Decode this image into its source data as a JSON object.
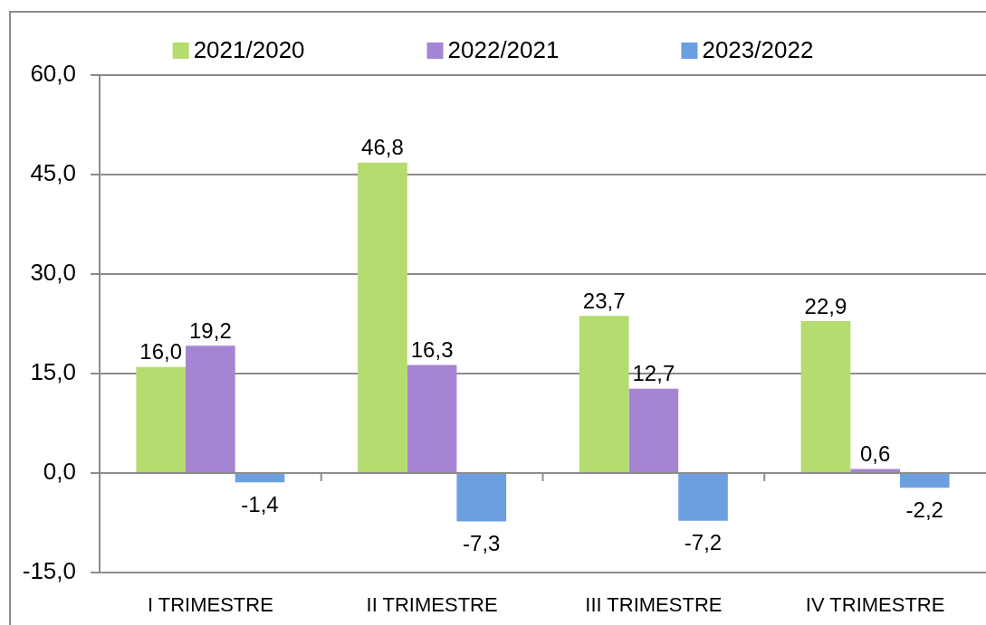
{
  "chart_data": {
    "type": "bar",
    "categories": [
      "I TRIMESTRE",
      "II TRIMESTRE",
      "III TRIMESTRE",
      "IV TRIMESTRE"
    ],
    "series": [
      {
        "name": "2021/2020",
        "color": "#b4dc6e",
        "values": [
          16.0,
          46.8,
          23.7,
          22.9
        ],
        "value_labels": [
          "16,0",
          "46,8",
          "23,7",
          "22,9"
        ]
      },
      {
        "name": "2022/2021",
        "color": "#a584d2",
        "values": [
          19.2,
          16.3,
          12.7,
          0.6
        ],
        "value_labels": [
          "19,2",
          "16,3",
          "12,7",
          "0,6"
        ]
      },
      {
        "name": "2023/2022",
        "color": "#6c9fe0",
        "values": [
          -1.4,
          -7.3,
          -7.2,
          -2.2
        ],
        "value_labels": [
          "-1,4",
          "-7,3",
          "-7,2",
          "-2,2"
        ]
      }
    ],
    "ylim": [
      -15,
      60
    ],
    "yticks": [
      {
        "value": -15,
        "label": "-15,0"
      },
      {
        "value": 0,
        "label": "0,0"
      },
      {
        "value": 15,
        "label": "15,0"
      },
      {
        "value": 30,
        "label": "30,0"
      },
      {
        "value": 45,
        "label": "45,0"
      },
      {
        "value": 60,
        "label": "60,0"
      }
    ],
    "grid": "y",
    "legend": "top"
  }
}
